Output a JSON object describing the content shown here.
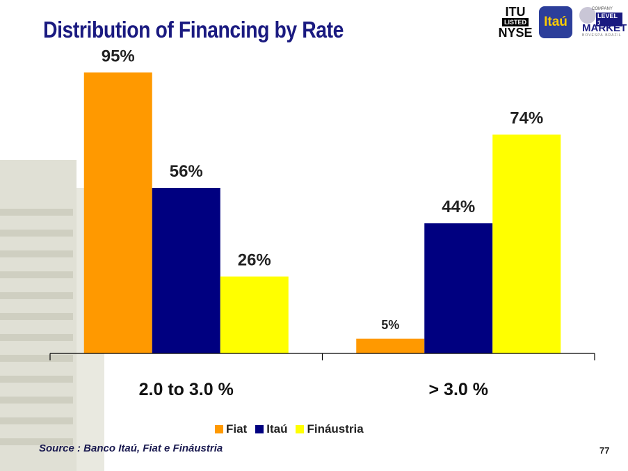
{
  "title": "Distribution of Financing by Rate",
  "logos": {
    "nyse_top": "ITU",
    "nyse_mid": "LISTED",
    "nyse_bottom": "NYSE",
    "itau": "Itaú",
    "level_small": "COMPANY",
    "level_badge": "LEVEL 1",
    "level_main": "MARKET",
    "level_bottom": "BOVESPA·BRAZIL"
  },
  "chart_data": {
    "type": "bar",
    "categories": [
      "2.0 to 3.0 %",
      "> 3.0 %"
    ],
    "series": [
      {
        "name": "Fiat",
        "color": "#ff9900",
        "values": [
          95,
          5
        ],
        "labels": [
          "95%",
          "5%"
        ]
      },
      {
        "name": "Itaú",
        "color": "#000080",
        "values": [
          56,
          44
        ],
        "labels": [
          "56%",
          "44%"
        ]
      },
      {
        "name": "Fináustria",
        "color": "#ffff00",
        "values": [
          26,
          74
        ],
        "labels": [
          "26%",
          "74%"
        ]
      }
    ],
    "ylim": [
      0,
      100
    ],
    "grid": false,
    "legend": "bottom"
  },
  "source": "Source : Banco Itaú, Fiat e Fináustria",
  "page_number": "77"
}
